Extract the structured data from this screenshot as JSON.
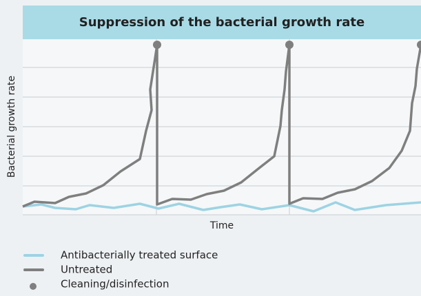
{
  "chart_data": {
    "type": "line",
    "title": "Suppression of the bacterial growth rate",
    "xlabel": "Time",
    "ylabel": "Bacterial growth rate",
    "xlim": [
      0,
      578
    ],
    "ylim": [
      0,
      255
    ],
    "xticks": [
      194,
      387
    ],
    "yticks": [
      42,
      85,
      128,
      171,
      214
    ],
    "grid": true,
    "series": [
      {
        "name": "Antibacterially treated surface",
        "color": "#9dd3e3",
        "mode": "line",
        "x": [
          0,
          27,
          47,
          77,
          97,
          132,
          170,
          197,
          227,
          262,
          287,
          315,
          347,
          387,
          422,
          454,
          482,
          527,
          578
        ],
        "values": [
          12,
          15,
          10,
          8,
          14,
          10,
          16,
          9,
          16,
          7,
          11,
          15,
          8,
          14,
          5,
          18,
          7,
          14,
          18
        ]
      },
      {
        "name": "Untreated",
        "color": "#7f7f7f",
        "mode": "line",
        "x": [
          0,
          17,
          47,
          67,
          92,
          117,
          142,
          170,
          179,
          187,
          185,
          192,
          195,
          195,
          217,
          244,
          267,
          292,
          317,
          342,
          365,
          374,
          376,
          380,
          382,
          387,
          387,
          407,
          435,
          457,
          482,
          507,
          532,
          550,
          562,
          565,
          570,
          572,
          578
        ],
        "values": [
          12,
          19,
          17,
          26,
          31,
          43,
          63,
          81,
          122,
          152,
          182,
          227,
          247,
          15,
          23,
          22,
          30,
          35,
          47,
          67,
          85,
          129,
          152,
          182,
          208,
          247,
          16,
          24,
          23,
          32,
          37,
          49,
          68,
          93,
          122,
          162,
          187,
          212,
          247
        ]
      },
      {
        "name": "Cleaning/disinfection",
        "color": "#7f7f7f",
        "mode": "marker",
        "x": [
          195,
          387,
          578
        ],
        "values": [
          247,
          247,
          247
        ]
      }
    ]
  }
}
